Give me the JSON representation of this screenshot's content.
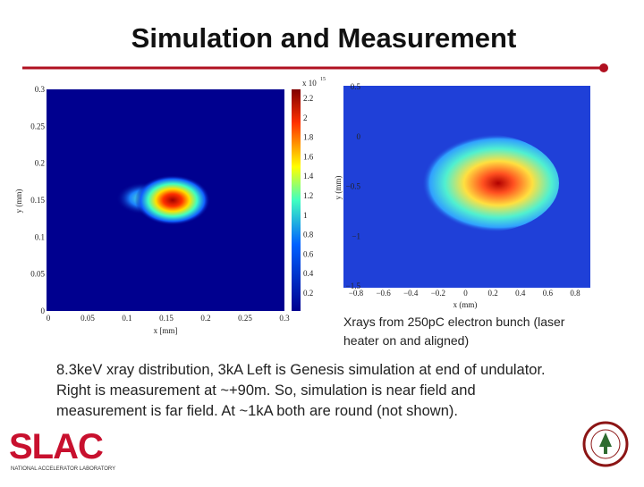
{
  "header": {
    "title": "Simulation and Measurement"
  },
  "figures": [
    {
      "x_ticks": [
        "0",
        "0.05",
        "0.1",
        "0.15",
        "0.2",
        "0.25",
        "0.3"
      ],
      "y_ticks": [
        "0.3",
        "0.25",
        "0.2",
        "0.15",
        "0.1",
        "0.05",
        "0"
      ],
      "x_label": "x [mm]",
      "y_label": "y (mm)",
      "colorbar": {
        "ticks": [
          "2.2",
          "2",
          "1.8",
          "1.6",
          "1.4",
          "1.2",
          "1",
          "0.8",
          "0.6",
          "0.4",
          "0.2"
        ],
        "multiplier": "x 10",
        "exponent": "15"
      }
    },
    {
      "x_ticks": [
        "−0.8",
        "−0.6",
        "−0.4",
        "−0.2",
        "0",
        "0.2",
        "0.4",
        "0.6",
        "0.8"
      ],
      "y_ticks": [
        "0.5",
        "0",
        "−0.5",
        "−1",
        "−1.5"
      ],
      "x_label": "x (mm)",
      "y_label": "y (mm)"
    }
  ],
  "caption": [
    "Xrays from 250pC electron bunch (laser",
    "heater on and aligned)"
  ],
  "body": [
    "8.3keV xray distribution, 3kA Left is Genesis simulation at end of undulator.",
    "Right is measurement at ~+90m. So, simulation is near field and",
    "measurement is far field. At ~1kA both are round (not shown)."
  ],
  "logo": {
    "text": "SLAC",
    "subtext": "NATIONAL ACCELERATOR LABORATORY"
  }
}
